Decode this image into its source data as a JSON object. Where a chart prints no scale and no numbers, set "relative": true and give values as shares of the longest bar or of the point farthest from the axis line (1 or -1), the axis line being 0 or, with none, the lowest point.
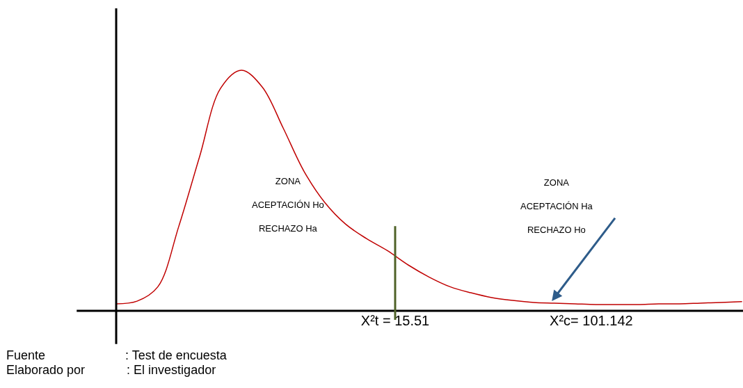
{
  "chart_data": {
    "type": "line",
    "relative": true,
    "x": [
      -106.3,
      -97.2,
      -88.1,
      -79.0,
      -69.9,
      -60.7,
      -51.6,
      -42.5,
      -33.4,
      -24.3,
      -15.2,
      -6.1,
      3.0,
      12.1,
      21.3,
      30.4,
      39.5,
      48.6,
      57.7,
      66.8,
      75.9,
      85.0,
      94.1,
      103.2,
      112.4,
      121.5,
      130.6,
      139.7,
      148.8,
      157.9,
      167.0
    ],
    "series": [
      {
        "color": "#c00000",
        "values": [
          0.029,
          0.04,
          0.1,
          0.35,
          0.64,
          0.925,
          1.0,
          0.93,
          0.76,
          0.58,
          0.45,
          0.36,
          0.3,
          0.25,
          0.19,
          0.14,
          0.1,
          0.075,
          0.055,
          0.043,
          0.035,
          0.032,
          0.029,
          0.026,
          0.026,
          0.026,
          0.029,
          0.029,
          0.032,
          0.035,
          0.038
        ]
      }
    ],
    "xlim": [
      -106.3,
      167.4
    ],
    "xticks": [
      {
        "value": 15.51,
        "label": "X²t = 15.51"
      },
      {
        "value": 101.142,
        "label": "X²c= 101.142"
      }
    ],
    "ref_lines": [
      {
        "axis": "x",
        "value": 15.51,
        "color": "#4f6228"
      }
    ],
    "annotations": [
      "ZONA\nACEPTACIÓN Ho\nRECHAZO Ha",
      "ZONA\nACEPTACIÓN Ha\nRECHAZO Ho",
      "Fuente                       : Test de encuesta",
      "Elaborado por            : El investigador"
    ],
    "legend": false,
    "marker": "none",
    "line_style": "solid"
  }
}
